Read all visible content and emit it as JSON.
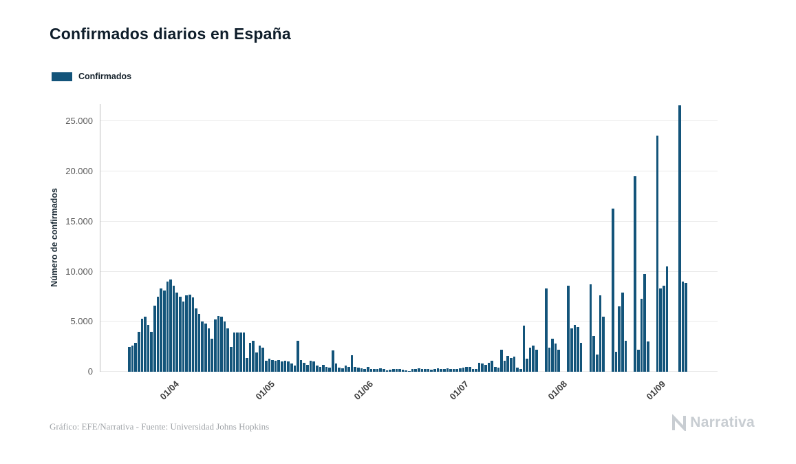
{
  "page": {
    "title": "Confirmados diarios en España",
    "source_note": "Gráfico: EFE/Narrativa - Fuente: Universidad Johns Hopkins",
    "brand": "Narrativa"
  },
  "legend": {
    "label": "Confirmados"
  },
  "chart_data": {
    "type": "bar",
    "title": "Confirmados diarios en España",
    "series_name": "Confirmados",
    "xlabel": "",
    "ylabel": "Número de confirmados",
    "bar_color": "#13547A",
    "grid": true,
    "legend_position": "top-left",
    "ylim": [
      0,
      26750
    ],
    "yticks": [
      {
        "label": "0",
        "value": 0
      },
      {
        "label": "5.000",
        "value": 5000
      },
      {
        "label": "10.000",
        "value": 10000
      },
      {
        "label": "15.000",
        "value": 15000
      },
      {
        "label": "20.000",
        "value": 20000
      },
      {
        "label": "25.000",
        "value": 25000
      }
    ],
    "xticks": [
      {
        "label": "01/04",
        "index": 14
      },
      {
        "label": "01/05",
        "index": 44
      },
      {
        "label": "01/06",
        "index": 75
      },
      {
        "label": "01/07",
        "index": 105
      },
      {
        "label": "01/08",
        "index": 136
      },
      {
        "label": "01/09",
        "index": 167
      }
    ],
    "values": [
      2500,
      2600,
      2900,
      4000,
      5300,
      5500,
      4700,
      4000,
      6600,
      7500,
      8300,
      8100,
      9000,
      9222,
      8600,
      7900,
      7500,
      7000,
      7600,
      7700,
      7400,
      6300,
      5800,
      5000,
      4800,
      4300,
      3300,
      5200,
      5600,
      5500,
      5000,
      4300,
      2500,
      3900,
      3900,
      3900,
      3900,
      1400,
      2900,
      3100,
      1900,
      2600,
      2400,
      1100,
      1300,
      1200,
      1100,
      1200,
      1000,
      1100,
      1000,
      800,
      600,
      3100,
      1200,
      900,
      700,
      1100,
      1000,
      600,
      500,
      700,
      500,
      400,
      2100,
      800,
      400,
      350,
      600,
      500,
      1650,
      500,
      400,
      350,
      300,
      500,
      300,
      250,
      300,
      350,
      250,
      150,
      200,
      250,
      300,
      250,
      200,
      150,
      100,
      250,
      300,
      350,
      250,
      300,
      250,
      200,
      300,
      350,
      300,
      250,
      350,
      300,
      250,
      300,
      350,
      400,
      450,
      500,
      300,
      250,
      900,
      800,
      700,
      900,
      1100,
      500,
      400,
      2200,
      1100,
      1600,
      1400,
      1500,
      400,
      300,
      4600,
      1300,
      2400,
      2600,
      2200,
      0,
      0,
      8300,
      2400,
      3300,
      2800,
      2200,
      0,
      0,
      8600,
      4300,
      4700,
      4500,
      2900,
      0,
      0,
      8700,
      3600,
      1700,
      7600,
      5500,
      0,
      0,
      16300,
      2000,
      6500,
      7900,
      3100,
      0,
      0,
      19500,
      2200,
      7300,
      9800,
      3000,
      0,
      0,
      23600,
      8300,
      8600,
      10500,
      0,
      0,
      0,
      26600,
      9000,
      8900
    ]
  }
}
